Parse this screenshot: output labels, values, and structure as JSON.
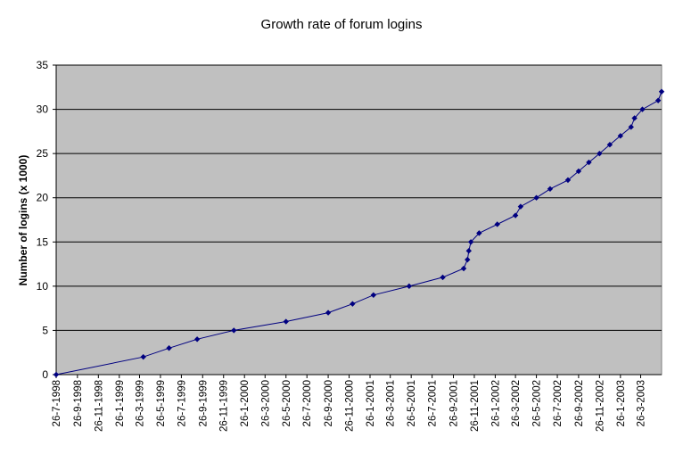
{
  "chart_data": {
    "type": "line",
    "title": "Growth rate of forum logins",
    "xlabel": "",
    "ylabel": "Number of logins (x 1000)",
    "ylim": [
      0,
      35
    ],
    "yticks": [
      "0",
      "5",
      "10",
      "15",
      "20",
      "25",
      "30",
      "35"
    ],
    "xlim": [
      "1998-07-26",
      "2003-05-26"
    ],
    "xticks": [
      "26-7-1998",
      "26-9-1998",
      "26-11-1998",
      "26-1-1999",
      "26-3-1999",
      "26-5-1999",
      "26-7-1999",
      "26-9-1999",
      "26-11-1999",
      "26-1-2000",
      "26-3-2000",
      "26-5-2000",
      "26-7-2000",
      "26-9-2000",
      "26-11-2000",
      "26-1-2001",
      "26-3-2001",
      "26-5-2001",
      "26-7-2001",
      "26-9-2001",
      "26-11-2001",
      "26-1-2002",
      "26-3-2002",
      "26-5-2002",
      "26-7-2002",
      "26-9-2002",
      "26-11-2002",
      "26-1-2003",
      "26-3-2003"
    ],
    "grid": true,
    "legend": "none",
    "colors": {
      "plot_bg": "#c0c0c0",
      "line": "#000080",
      "marker": "#000080",
      "grid": "#000000"
    },
    "series": [
      {
        "x": [
          "1998-07-26",
          "1999-04-06",
          "1999-06-20",
          "1999-09-10",
          "1999-12-26",
          "2000-05-26",
          "2000-09-26",
          "2000-12-06",
          "2001-02-05",
          "2001-05-20",
          "2001-08-26",
          "2001-10-26",
          "2001-11-06",
          "2001-11-10",
          "2001-11-16",
          "2001-12-10",
          "2002-02-01",
          "2002-03-26",
          "2002-04-10",
          "2002-05-26",
          "2002-07-05",
          "2002-08-26",
          "2002-09-26",
          "2002-10-26",
          "2002-11-26",
          "2002-12-26",
          "2003-01-26",
          "2003-02-26",
          "2003-03-08",
          "2003-03-31",
          "2003-05-16",
          "2003-05-26"
        ],
        "values": [
          0,
          2,
          3,
          4,
          5,
          6,
          7,
          8,
          9,
          10,
          11,
          12,
          13,
          14,
          15,
          16,
          17,
          18,
          19,
          20,
          21,
          22,
          23,
          24,
          25,
          26,
          27,
          28,
          29,
          30,
          31,
          32
        ]
      }
    ]
  }
}
